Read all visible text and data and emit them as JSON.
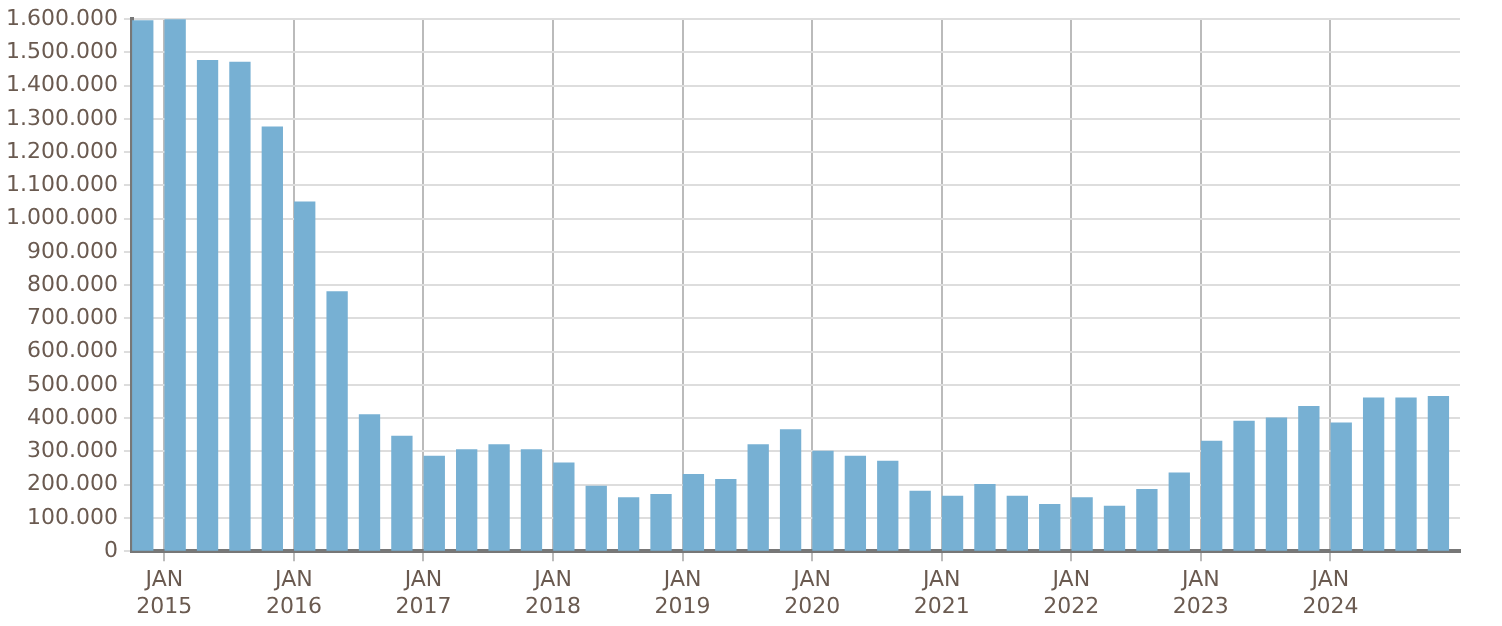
{
  "chart_data": {
    "type": "bar",
    "color": "#77b0d3",
    "x": [
      "2014-11",
      "2015-02",
      "2015-05",
      "2015-08",
      "2015-11",
      "2016-02",
      "2016-05",
      "2016-08",
      "2016-11",
      "2017-02",
      "2017-05",
      "2017-08",
      "2017-11",
      "2018-02",
      "2018-05",
      "2018-08",
      "2018-11",
      "2019-02",
      "2019-05",
      "2019-08",
      "2019-11",
      "2020-02",
      "2020-05",
      "2020-08",
      "2020-11",
      "2021-02",
      "2021-05",
      "2021-08",
      "2021-11",
      "2022-02",
      "2022-05",
      "2022-08",
      "2022-11",
      "2023-02",
      "2023-05",
      "2023-08",
      "2023-11",
      "2024-02",
      "2024-05",
      "2024-08",
      "2024-11"
    ],
    "values": [
      1595000,
      1600000,
      1475000,
      1470000,
      1275000,
      1050000,
      780000,
      410000,
      345000,
      285000,
      305000,
      320000,
      305000,
      265000,
      195000,
      160000,
      170000,
      230000,
      215000,
      320000,
      365000,
      300000,
      285000,
      270000,
      180000,
      165000,
      200000,
      165000,
      140000,
      160000,
      135000,
      185000,
      235000,
      330000,
      390000,
      400000,
      435000,
      385000,
      460000,
      460000,
      465000
    ],
    "xlim": [
      "2014-10",
      "2025-01"
    ],
    "xticks": [
      {
        "value": "2015-01",
        "label": "JAN 2015"
      },
      {
        "value": "2016-01",
        "label": "JAN 2016"
      },
      {
        "value": "2017-01",
        "label": "JAN 2017"
      },
      {
        "value": "2018-01",
        "label": "JAN 2018"
      },
      {
        "value": "2019-01",
        "label": "JAN 2019"
      },
      {
        "value": "2020-01",
        "label": "JAN 2020"
      },
      {
        "value": "2021-01",
        "label": "JAN 2021"
      },
      {
        "value": "2022-01",
        "label": "JAN 2022"
      },
      {
        "value": "2023-01",
        "label": "JAN 2023"
      },
      {
        "value": "2024-01",
        "label": "JAN 2024"
      }
    ],
    "ylim": [
      0,
      1600000
    ],
    "yticks": [
      {
        "value": 0,
        "label": "0"
      },
      {
        "value": 100000,
        "label": "100.000"
      },
      {
        "value": 200000,
        "label": "200.000"
      },
      {
        "value": 300000,
        "label": "300.000"
      },
      {
        "value": 400000,
        "label": "400.000"
      },
      {
        "value": 500000,
        "label": "500.000"
      },
      {
        "value": 600000,
        "label": "600.000"
      },
      {
        "value": 700000,
        "label": "700.000"
      },
      {
        "value": 800000,
        "label": "800.000"
      },
      {
        "value": 900000,
        "label": "900.000"
      },
      {
        "value": 1000000,
        "label": "1.000.000"
      },
      {
        "value": 1100000,
        "label": "1.100.000"
      },
      {
        "value": 1200000,
        "label": "1.200.000"
      },
      {
        "value": 1300000,
        "label": "1.300.000"
      },
      {
        "value": 1400000,
        "label": "1.400.000"
      },
      {
        "value": 1500000,
        "label": "1.500.000"
      },
      {
        "value": 1600000,
        "label": "1.600.000"
      }
    ],
    "grid": true,
    "legend": false
  }
}
